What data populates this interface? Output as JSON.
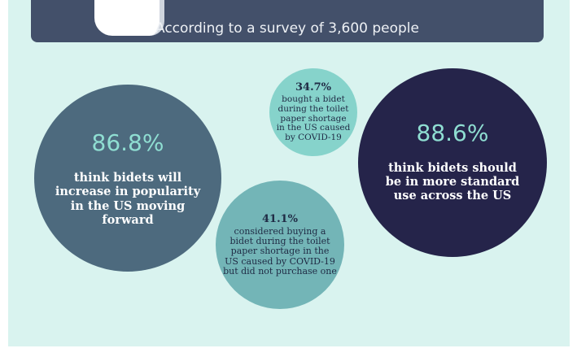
{
  "banner": {
    "subtitle": "According to a survey of 3,600 people"
  },
  "stats": [
    {
      "percent": "86.8%",
      "text": "think bidets will increase in popularity in the US moving forward"
    },
    {
      "percent": "34.7%",
      "text": "bought a bidet during the toilet paper shortage in the US caused by COVID-19"
    },
    {
      "percent": "88.6%",
      "text": "think bidets should be in more standard use across the US"
    },
    {
      "percent": "41.1%",
      "text": "considered buying a bidet during the toilet paper shortage in the US caused by COVID-19 but did not purchase one"
    }
  ],
  "colors": {
    "background": "#d9f3ef",
    "banner": "#43506a",
    "circle_slate": "#4d6a7e",
    "circle_mint": "#86d3cb",
    "circle_navy": "#25244a",
    "circle_teal": "#73b5b7"
  }
}
